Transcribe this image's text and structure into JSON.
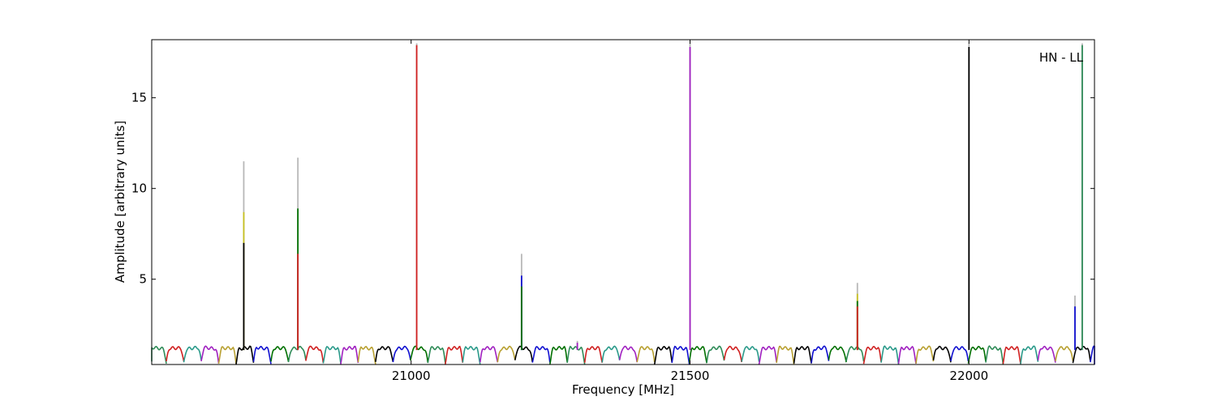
{
  "chart_data": {
    "type": "line",
    "title": "",
    "xlabel": "Frequency [MHz]",
    "ylabel": "Amplitude [arbitrary units]",
    "annotation": "HN - LL",
    "legend": "none",
    "grid": false,
    "xlim": [
      20535,
      22225
    ],
    "ylim": [
      0.3,
      18.2
    ],
    "x_ticks": [
      21000,
      21500,
      22000
    ],
    "y_ticks": [
      5,
      10,
      15
    ],
    "subband_width_mhz": 31.25,
    "baseline_amplitude_range": [
      0.3,
      1.4
    ],
    "series_colors": [
      "#2e8b57",
      "#d02020",
      "#2a9a8a",
      "#a020c0",
      "#b8a030",
      "#000000",
      "#1010d0",
      "#007000"
    ],
    "spikes": [
      {
        "x": 20700,
        "overlay": [
          {
            "color": "#b8b8b8",
            "y": 11.5
          },
          {
            "color": "#c8c020",
            "y": 8.7
          },
          {
            "color": "#000000",
            "y": 7.0
          }
        ]
      },
      {
        "x": 20797,
        "overlay": [
          {
            "color": "#b8b8b8",
            "y": 11.7
          },
          {
            "color": "#007000",
            "y": 8.9
          },
          {
            "color": "#d02020",
            "y": 6.4
          }
        ]
      },
      {
        "x": 21010,
        "overlay": [
          {
            "color": "#b8b8b8",
            "y": 18.0
          },
          {
            "color": "#d02020",
            "y": 17.9
          }
        ]
      },
      {
        "x": 21198,
        "overlay": [
          {
            "color": "#b8b8b8",
            "y": 6.4
          },
          {
            "color": "#1010d0",
            "y": 5.2
          },
          {
            "color": "#007000",
            "y": 4.6
          }
        ]
      },
      {
        "x": 21298,
        "overlay": [
          {
            "color": "#b8b8b8",
            "y": 1.6
          },
          {
            "color": "#a020c0",
            "y": 1.5
          }
        ]
      },
      {
        "x": 21500,
        "overlay": [
          {
            "color": "#b8b8b8",
            "y": 18.0
          },
          {
            "color": "#a020c0",
            "y": 17.8
          }
        ]
      },
      {
        "x": 21800,
        "overlay": [
          {
            "color": "#b8b8b8",
            "y": 4.8
          },
          {
            "color": "#c8c020",
            "y": 4.2
          },
          {
            "color": "#007000",
            "y": 3.8
          },
          {
            "color": "#d02020",
            "y": 3.5
          }
        ]
      },
      {
        "x": 22000,
        "overlay": [
          {
            "color": "#b8b8b8",
            "y": 18.0
          },
          {
            "color": "#000000",
            "y": 17.8
          }
        ]
      },
      {
        "x": 22190,
        "overlay": [
          {
            "color": "#b8b8b8",
            "y": 4.1
          },
          {
            "color": "#1010d0",
            "y": 3.5
          }
        ]
      },
      {
        "x": 22203,
        "overlay": [
          {
            "color": "#b8b8b8",
            "y": 18.0
          },
          {
            "color": "#2e8b57",
            "y": 17.9
          }
        ]
      }
    ]
  }
}
